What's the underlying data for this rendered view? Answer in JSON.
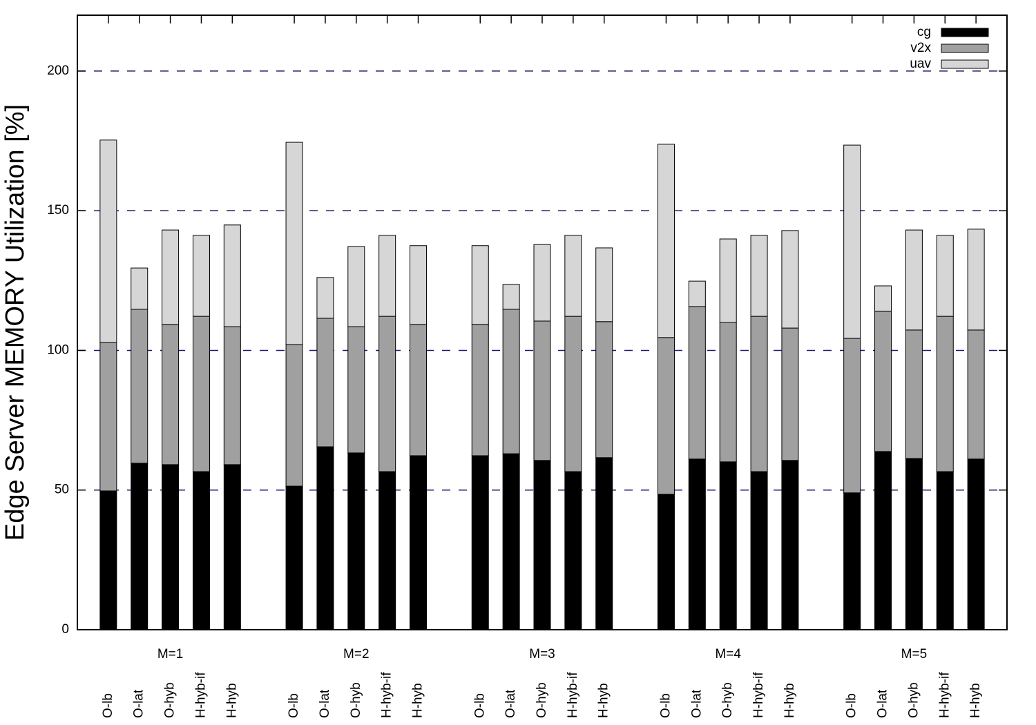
{
  "chart_data": {
    "type": "stacked_bar",
    "ylabel": "Edge Server MEMORY Utilization [%]",
    "groups": [
      "M=1",
      "M=2",
      "M=3",
      "M=4",
      "M=5"
    ],
    "categories": [
      "O-lb",
      "O-lat",
      "O-hyb",
      "H-hyb-if",
      "H-hyb",
      "O-lb",
      "O-lat",
      "O-hyb",
      "H-hyb-if",
      "H-hyb",
      "O-lb",
      "O-lat",
      "O-hyb",
      "H-hyb-if",
      "H-hyb",
      "O-lb",
      "O-lat",
      "O-hyb",
      "H-hyb-if",
      "H-hyb",
      "O-lb",
      "O-lat",
      "O-hyb",
      "H-hyb-if",
      "H-hyb"
    ],
    "series": [
      {
        "name": "cg",
        "color": "#000000",
        "values": [
          49.7,
          59.6,
          59.1,
          56.6,
          59.1,
          51.4,
          65.5,
          63.3,
          56.6,
          62.3,
          62.3,
          63.0,
          60.6,
          56.6,
          61.6,
          48.5,
          61.1,
          60.1,
          56.6,
          60.6,
          49.0,
          63.8,
          61.3,
          56.6,
          61.1
        ]
      },
      {
        "name": "v2x",
        "color": "#a0a0a0",
        "values": [
          53.1,
          55.1,
          50.2,
          55.6,
          49.4,
          50.7,
          46.0,
          45.2,
          55.6,
          47.0,
          47.0,
          51.7,
          49.9,
          55.6,
          48.7,
          56.1,
          54.6,
          49.9,
          55.6,
          47.4,
          55.3,
          50.2,
          46.0,
          55.6,
          46.2
        ]
      },
      {
        "name": "uav",
        "color": "#d6d6d6",
        "values": [
          72.5,
          14.8,
          33.8,
          29.0,
          36.4,
          72.4,
          14.6,
          28.7,
          29.0,
          28.2,
          28.2,
          8.9,
          27.4,
          29.0,
          26.4,
          69.2,
          9.1,
          29.9,
          29.0,
          34.9,
          69.2,
          9.1,
          35.8,
          29.0,
          36.1
        ]
      }
    ],
    "ylim": [
      0,
      220
    ],
    "yticks": [
      0,
      50,
      100,
      150,
      200
    ],
    "grid": true,
    "legend": "top-right"
  }
}
